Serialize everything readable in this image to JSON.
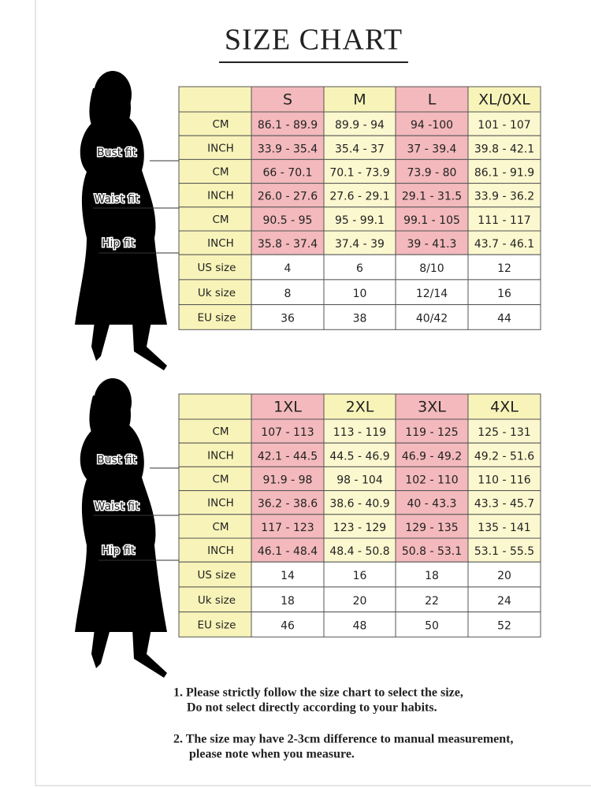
{
  "title": "SIZE CHART",
  "tables": [
    {
      "sizes": [
        "S",
        "M",
        "L",
        "XL/0XL"
      ],
      "fit_labels": [
        "Bust fit",
        "Waist fit",
        "Hip fit"
      ],
      "rows": [
        {
          "label": "CM",
          "cells": [
            "86.1 - 89.9",
            "89.9 - 94",
            "94 -100",
            "101 - 107"
          ]
        },
        {
          "label": "INCH",
          "cells": [
            "33.9 - 35.4",
            "35.4 - 37",
            "37 - 39.4",
            "39.8 - 42.1"
          ]
        },
        {
          "label": "CM",
          "cells": [
            "66 - 70.1",
            "70.1 - 73.9",
            "73.9 - 80",
            "86.1 - 91.9"
          ]
        },
        {
          "label": "INCH",
          "cells": [
            "26.0 - 27.6",
            "27.6 - 29.1",
            "29.1 - 31.5",
            "33.9 - 36.2"
          ]
        },
        {
          "label": "CM",
          "cells": [
            "90.5 - 95",
            "95 - 99.1",
            "99.1 - 105",
            "111 - 117"
          ]
        },
        {
          "label": "INCH",
          "cells": [
            "35.8 - 37.4",
            "37.4 - 39",
            "39 - 41.3",
            "43.7 - 46.1"
          ]
        },
        {
          "label": "US size",
          "cells": [
            "4",
            "6",
            "8/10",
            "12"
          ]
        },
        {
          "label": "Uk size",
          "cells": [
            "8",
            "10",
            "12/14",
            "16"
          ]
        },
        {
          "label": "EU size",
          "cells": [
            "36",
            "38",
            "40/42",
            "44"
          ]
        }
      ]
    },
    {
      "sizes": [
        "1XL",
        "2XL",
        "3XL",
        "4XL"
      ],
      "fit_labels": [
        "Bust fit",
        "Waist fit",
        "Hip fit"
      ],
      "rows": [
        {
          "label": "CM",
          "cells": [
            "107 - 113",
            "113 - 119",
            "119 - 125",
            "125 - 131"
          ]
        },
        {
          "label": "INCH",
          "cells": [
            "42.1 - 44.5",
            "44.5 - 46.9",
            "46.9 - 49.2",
            "49.2 - 51.6"
          ]
        },
        {
          "label": "CM",
          "cells": [
            "91.9 - 98",
            "98 - 104",
            "102 - 110",
            "110 - 116"
          ]
        },
        {
          "label": "INCH",
          "cells": [
            "36.2 - 38.6",
            "38.6 - 40.9",
            "40 - 43.3",
            "43.3 - 45.7"
          ]
        },
        {
          "label": "CM",
          "cells": [
            "117 - 123",
            "123 - 129",
            "129 - 135",
            "135 - 141"
          ]
        },
        {
          "label": "INCH",
          "cells": [
            "46.1 - 48.4",
            "48.4 - 50.8",
            "50.8 - 53.1",
            "53.1 - 55.5"
          ]
        },
        {
          "label": "US size",
          "cells": [
            "14",
            "16",
            "18",
            "20"
          ]
        },
        {
          "label": "Uk size",
          "cells": [
            "18",
            "20",
            "22",
            "24"
          ]
        },
        {
          "label": "EU size",
          "cells": [
            "46",
            "48",
            "50",
            "52"
          ]
        }
      ]
    }
  ],
  "notes": [
    [
      "1.  Please strictly follow the size chart to select the size,",
      "Do not select directly according to your habits."
    ],
    [
      "2.  The size may have 2-3cm difference  to manual measurement,",
      "please note when you measure."
    ]
  ]
}
